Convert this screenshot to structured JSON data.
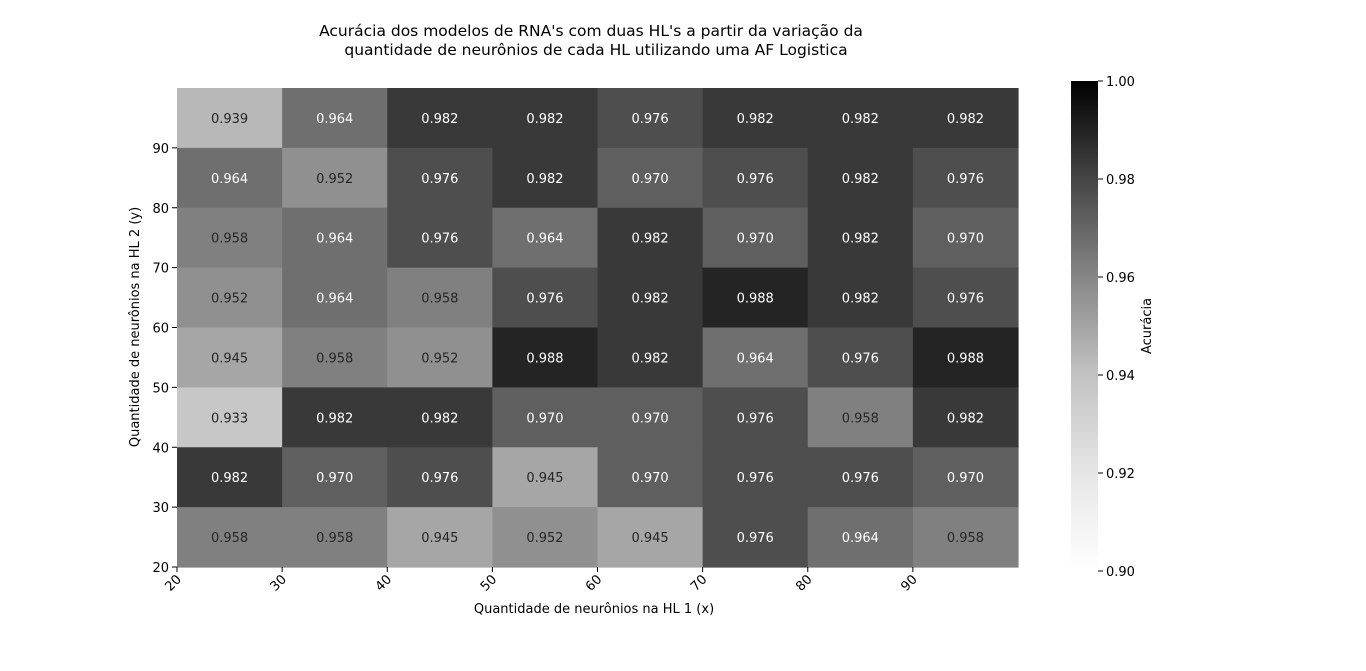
{
  "chart_data": {
    "type": "heatmap",
    "title_line1": "Acurácia dos modelos de RNA's com duas HL's a partir da variação da",
    "title_line2": "quantidade de neurônios de cada HL utilizando uma AF Logistica",
    "xlabel": "Quantidade de neurônios na HL 1 (x)",
    "ylabel": "Quantidade de neurônios na HL 2 (y)",
    "colorbar_label": "Acurácia",
    "x_ticks": [
      "20",
      "30",
      "40",
      "50",
      "60",
      "70",
      "80",
      "90"
    ],
    "y_ticks": [
      "20",
      "30",
      "40",
      "50",
      "60",
      "70",
      "80",
      "90"
    ],
    "colorbar_ticks": [
      "0.90",
      "0.92",
      "0.94",
      "0.96",
      "0.98",
      "1.00"
    ],
    "vmin": 0.9,
    "vmax": 1.0,
    "colormap": "Greys",
    "rows_top_to_bottom": [
      [
        "0.939",
        "0.964",
        "0.982",
        "0.982",
        "0.976",
        "0.982",
        "0.982",
        "0.982"
      ],
      [
        "0.964",
        "0.952",
        "0.976",
        "0.982",
        "0.970",
        "0.976",
        "0.982",
        "0.976"
      ],
      [
        "0.958",
        "0.964",
        "0.976",
        "0.964",
        "0.982",
        "0.970",
        "0.982",
        "0.970"
      ],
      [
        "0.952",
        "0.964",
        "0.958",
        "0.976",
        "0.982",
        "0.988",
        "0.982",
        "0.976"
      ],
      [
        "0.945",
        "0.958",
        "0.952",
        "0.988",
        "0.982",
        "0.964",
        "0.976",
        "0.988"
      ],
      [
        "0.933",
        "0.982",
        "0.982",
        "0.970",
        "0.970",
        "0.976",
        "0.958",
        "0.982"
      ],
      [
        "0.982",
        "0.970",
        "0.976",
        "0.945",
        "0.970",
        "0.976",
        "0.976",
        "0.970"
      ],
      [
        "0.958",
        "0.958",
        "0.945",
        "0.952",
        "0.945",
        "0.976",
        "0.964",
        "0.958"
      ]
    ]
  }
}
